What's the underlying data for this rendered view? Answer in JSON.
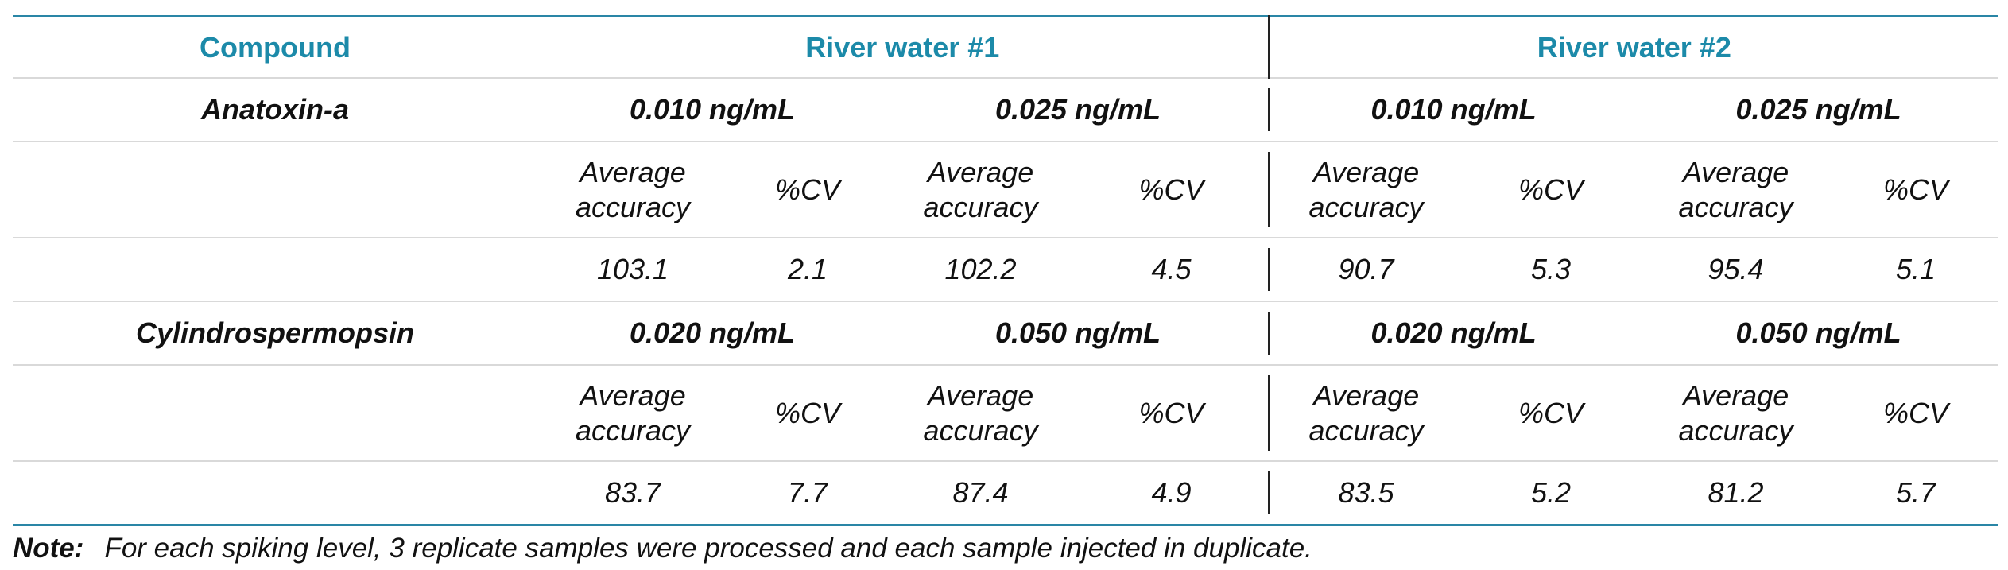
{
  "colors": {
    "header": "#1c8aa9",
    "rule": "#2a86a6",
    "grid": "#d9d9d9"
  },
  "header": {
    "compound": "Compound",
    "group1": "River water #1",
    "group2": "River water #2"
  },
  "compounds": [
    {
      "name": "Anatoxin-a",
      "levels": [
        "0.010 ng/mL",
        "0.025 ng/mL",
        "0.010 ng/mL",
        "0.025 ng/mL"
      ],
      "subheaders": [
        [
          "Average",
          "accuracy"
        ],
        [
          "%CV"
        ],
        [
          "Average",
          "accuracy"
        ],
        [
          "%CV"
        ],
        [
          "Average",
          "accuracy"
        ],
        [
          "%CV"
        ],
        [
          "Average",
          "accuracy"
        ],
        [
          "%CV"
        ]
      ],
      "values": [
        "103.1",
        "2.1",
        "102.2",
        "4.5",
        "90.7",
        "5.3",
        "95.4",
        "5.1"
      ]
    },
    {
      "name": "Cylindrospermopsin",
      "levels": [
        "0.020 ng/mL",
        "0.050 ng/mL",
        "0.020 ng/mL",
        "0.050 ng/mL"
      ],
      "subheaders": [
        [
          "Average",
          "accuracy"
        ],
        [
          "%CV"
        ],
        [
          "Average",
          "accuracy"
        ],
        [
          "%CV"
        ],
        [
          "Average",
          "accuracy"
        ],
        [
          "%CV"
        ],
        [
          "Average",
          "accuracy"
        ],
        [
          "%CV"
        ]
      ],
      "values": [
        "83.7",
        "7.7",
        "87.4",
        "4.9",
        "83.5",
        "5.2",
        "81.2",
        "5.7"
      ]
    }
  ],
  "note": {
    "label": "Note:",
    "text": "For each spiking level, 3 replicate samples were processed and each sample injected in duplicate."
  }
}
